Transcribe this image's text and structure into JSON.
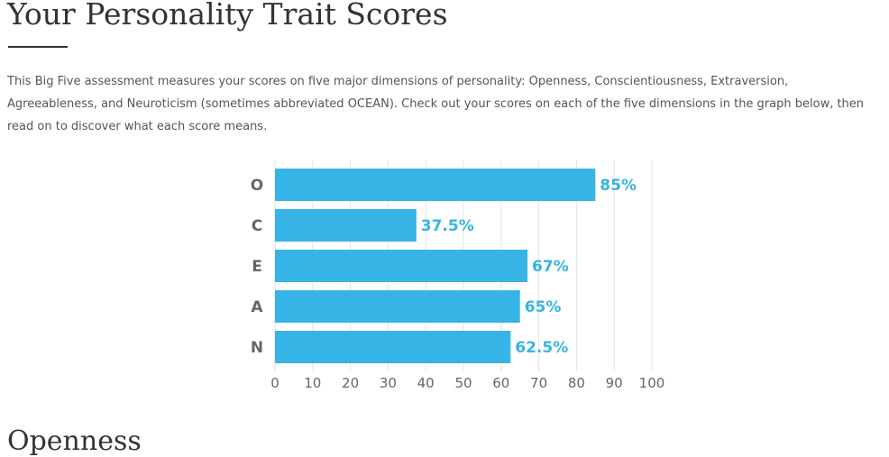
{
  "page": {
    "title": "Your Personality Trait Scores",
    "intro": "This Big Five assessment measures your scores on five major dimensions of personality: Openness, Conscientiousness, Extraversion, Agreeableness, and Neuroticism (sometimes abbreviated OCEAN). Check out your scores on each of the five dimensions in the graph below, then read on to discover what each score means.",
    "next_heading": "Openness"
  },
  "colors": {
    "bar": "#36b4e5",
    "label": "#36b4e5",
    "category_text": "#666666",
    "tick_text": "#666666",
    "grid": "#e3e3e3"
  },
  "chart_data": {
    "type": "bar",
    "orientation": "horizontal",
    "categories": [
      "O",
      "C",
      "E",
      "A",
      "N"
    ],
    "values": [
      85,
      37.5,
      67,
      65,
      62.5
    ],
    "data_labels": [
      "85%",
      "37.5%",
      "67%",
      "65%",
      "62.5%"
    ],
    "xlim": [
      0,
      100
    ],
    "xticks": [
      0,
      10,
      20,
      30,
      40,
      50,
      60,
      70,
      80,
      90,
      100
    ],
    "title": "",
    "xlabel": "",
    "ylabel": "",
    "grid": true,
    "legend": false
  }
}
